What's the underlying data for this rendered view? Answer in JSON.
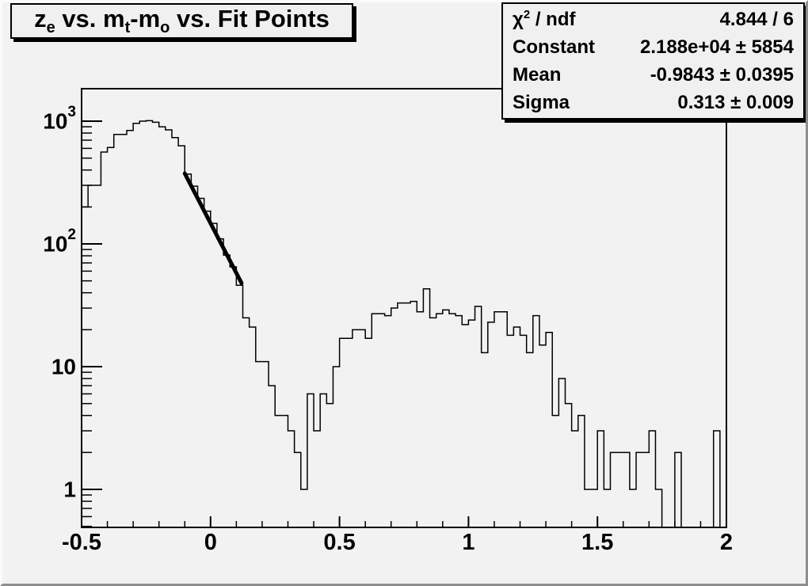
{
  "title": {
    "plain": "z_e vs. m_t-m_o vs. Fit Points",
    "segments": [
      {
        "t": "z"
      },
      {
        "sub": "e"
      },
      {
        "t": " vs. m"
      },
      {
        "sub": "t"
      },
      {
        "t": "-m"
      },
      {
        "sub": "o"
      },
      {
        "t": " vs. Fit Points"
      }
    ]
  },
  "stats": {
    "rows": [
      {
        "label_plain": "chi2 / ndf",
        "label": [
          {
            "t": "χ"
          },
          {
            "sup": "2"
          },
          {
            "t": " / ndf"
          }
        ],
        "value": "4.844 / 6"
      },
      {
        "label_plain": "Constant",
        "label": [
          {
            "t": "Constant"
          }
        ],
        "value": "2.188e+04 ± 5854"
      },
      {
        "label_plain": "Mean",
        "label": [
          {
            "t": "Mean"
          }
        ],
        "value": "-0.9843 ± 0.0395"
      },
      {
        "label_plain": "Sigma",
        "label": [
          {
            "t": "Sigma"
          }
        ],
        "value": "0.313 ± 0.009"
      }
    ]
  },
  "chart_data": {
    "type": "bar",
    "subtype": "step-histogram",
    "title": "z_e vs. m_t-m_o vs. Fit Points",
    "xlabel": "",
    "ylabel": "",
    "grid": false,
    "x_axis": {
      "min": -0.5,
      "max": 2,
      "major_ticks": [
        -0.5,
        0,
        0.5,
        1,
        1.5,
        2
      ],
      "tick_labels": [
        "-0.5",
        "0",
        "0.5",
        "1",
        "1.5",
        "2"
      ],
      "minor_tick_step": 0.1
    },
    "y_axis": {
      "scale": "log",
      "min": 0.49,
      "max": 1840,
      "decades": [
        1,
        10,
        100,
        1000
      ],
      "decade_labels": [
        {
          "base": "1",
          "exp": ""
        },
        {
          "base": "10",
          "exp": ""
        },
        {
          "base": "10",
          "exp": "2"
        },
        {
          "base": "10",
          "exp": "3"
        }
      ]
    },
    "bins": {
      "start": -0.5,
      "width": 0.025,
      "counts": [
        200,
        300,
        300,
        560,
        610,
        780,
        780,
        840,
        960,
        1000,
        1010,
        980,
        900,
        850,
        735,
        630,
        370,
        295,
        235,
        185,
        147,
        110,
        81,
        65,
        46,
        25,
        21,
        11,
        11,
        7,
        4,
        4,
        3,
        2,
        1,
        6,
        3,
        6,
        5,
        10,
        17,
        17,
        20,
        20,
        17,
        27,
        27,
        26,
        30,
        33,
        33,
        34,
        28,
        43,
        25,
        27,
        29,
        27,
        26,
        22,
        24,
        31,
        13,
        23,
        28,
        28,
        18,
        21,
        18,
        13,
        26,
        15,
        19,
        4,
        8,
        5,
        3,
        4,
        1,
        1,
        3,
        1,
        2,
        2,
        2,
        1,
        2,
        2,
        3,
        1,
        0,
        0,
        2,
        0,
        0,
        0,
        0,
        0,
        3,
        0
      ]
    },
    "fit_line": {
      "x1": -0.1,
      "v1": 375,
      "x2": 0.12,
      "v2": 48,
      "color": "#000000",
      "stroke_width": 5
    },
    "line_color": "#000000",
    "colors": {
      "canvas_bg": "#f2f2f2",
      "pave_bg": "#f0f0f0",
      "frame_stroke": "#000000"
    }
  }
}
